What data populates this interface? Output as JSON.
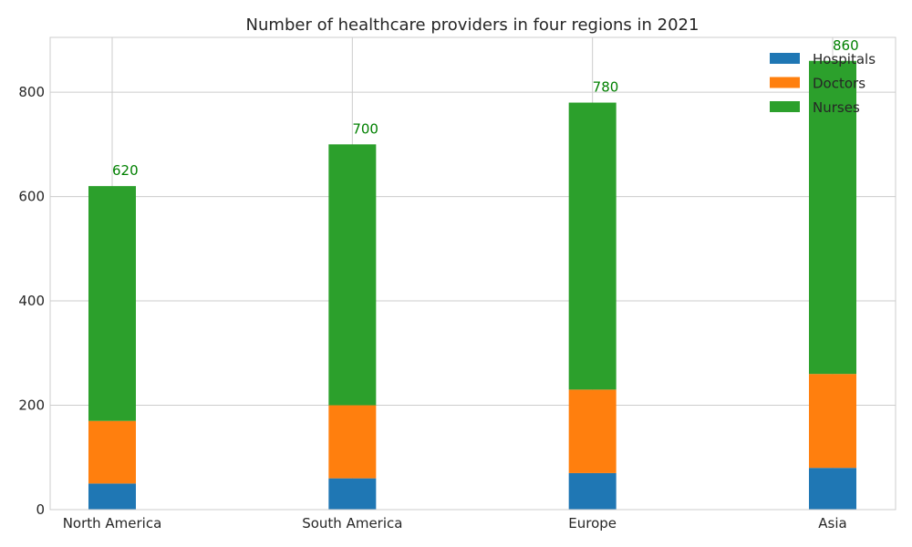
{
  "chart_data": {
    "type": "bar",
    "stacked": true,
    "title": "Number of healthcare providers in four regions in 2021",
    "xlabel": "",
    "ylabel": "",
    "categories": [
      "North America",
      "South America",
      "Europe",
      "Asia"
    ],
    "series": [
      {
        "name": "Hospitals",
        "values": [
          50,
          60,
          70,
          80
        ],
        "color": "#1f77b4"
      },
      {
        "name": "Doctors",
        "values": [
          120,
          140,
          160,
          180
        ],
        "color": "#ff7f0e"
      },
      {
        "name": "Nurses",
        "values": [
          450,
          500,
          550,
          600
        ],
        "color": "#2ca02c"
      }
    ],
    "totals": [
      620,
      700,
      780,
      860
    ],
    "total_label_color": "#008000",
    "ylim": [
      0,
      905
    ],
    "yticks": [
      0,
      200,
      400,
      600,
      800
    ],
    "grid": true,
    "legend_position": "top-right"
  }
}
